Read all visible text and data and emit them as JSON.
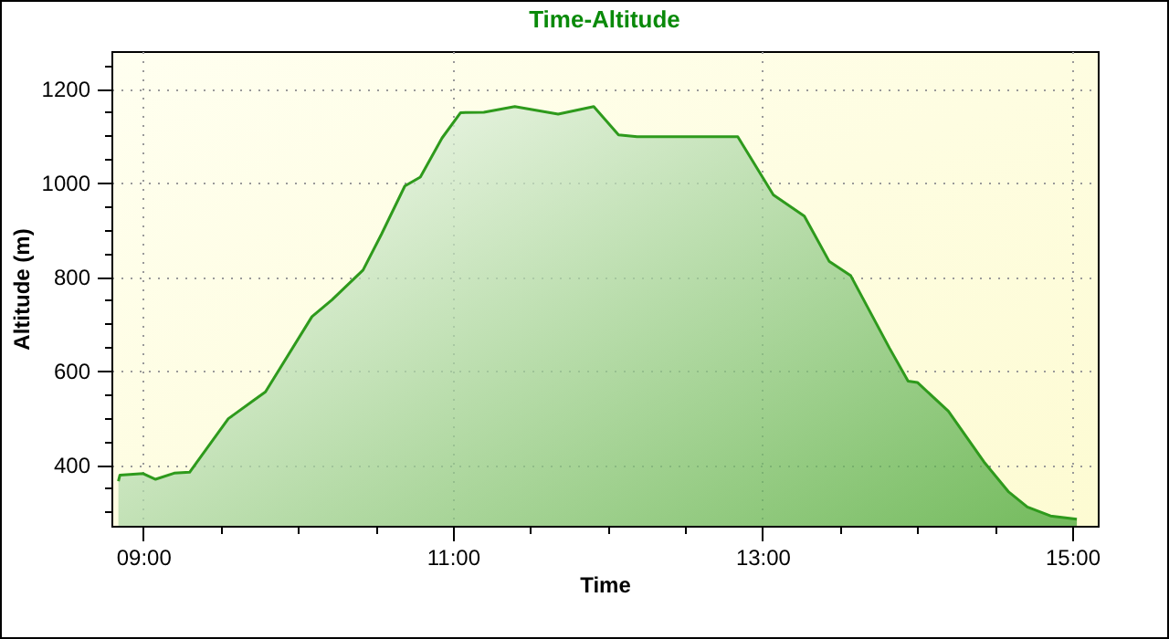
{
  "chart_data": {
    "type": "area",
    "title": "Time-Altitude",
    "xlabel": "Time",
    "ylabel": "Altitude (m)",
    "xlim": [
      8.795,
      15.165
    ],
    "ylim": [
      270,
      1280
    ],
    "xticks": [
      {
        "value": 9,
        "label": "09:00"
      },
      {
        "value": 9.5,
        "label": null
      },
      {
        "value": 10,
        "label": null
      },
      {
        "value": 10.5,
        "label": null
      },
      {
        "value": 11,
        "label": "11:00"
      },
      {
        "value": 11.5,
        "label": null
      },
      {
        "value": 12,
        "label": null
      },
      {
        "value": 12.5,
        "label": null
      },
      {
        "value": 13,
        "label": "13:00"
      },
      {
        "value": 13.5,
        "label": null
      },
      {
        "value": 14,
        "label": null
      },
      {
        "value": 14.5,
        "label": null
      },
      {
        "value": 15,
        "label": "15:00"
      }
    ],
    "yticks": [
      {
        "value": 300,
        "label": null
      },
      {
        "value": 350,
        "label": null
      },
      400,
      {
        "value": 450,
        "label": null
      },
      {
        "value": 500,
        "label": null
      },
      {
        "value": 550,
        "label": null
      },
      600,
      {
        "value": 650,
        "label": null
      },
      {
        "value": 700,
        "label": null
      },
      {
        "value": 750,
        "label": null
      },
      800,
      {
        "value": 850,
        "label": null
      },
      {
        "value": 900,
        "label": null
      },
      {
        "value": 950,
        "label": null
      },
      1000,
      {
        "value": 1050,
        "label": null
      },
      {
        "value": 1100,
        "label": null
      },
      {
        "value": 1150,
        "label": null
      },
      1200,
      {
        "value": 1250,
        "label": null
      }
    ],
    "grid": true,
    "x": [
      8.84,
      8.85,
      9.0,
      9.08,
      9.2,
      9.3,
      9.55,
      9.71,
      9.79,
      10.09,
      10.22,
      10.42,
      10.54,
      10.69,
      10.79,
      10.93,
      11.05,
      11.2,
      11.4,
      11.68,
      11.91,
      12.07,
      12.19,
      12.84,
      13.07,
      13.27,
      13.43,
      13.57,
      13.82,
      13.94,
      14.0,
      14.2,
      14.43,
      14.59,
      14.71,
      14.86,
      15.03
    ],
    "series": [
      {
        "color": "#2e9a1c",
        "values": [
          365,
          378,
          381,
          369,
          382,
          384,
          498,
          536,
          555,
          715,
          751,
          814,
          891,
          993,
          1012,
          1095,
          1149,
          1150,
          1162,
          1146,
          1162,
          1102,
          1098,
          1098,
          974,
          929,
          833,
          802,
          648,
          578,
          575,
          514,
          406,
          342,
          310,
          291,
          284
        ]
      }
    ]
  }
}
